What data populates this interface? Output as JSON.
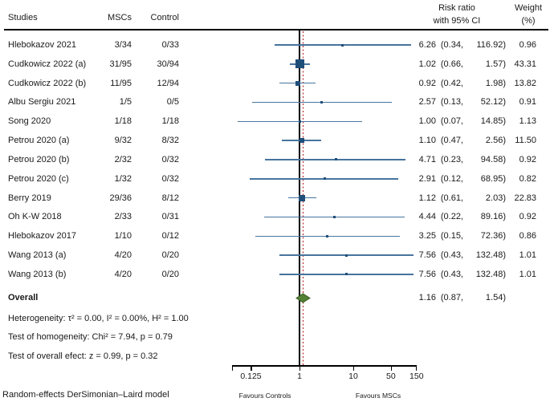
{
  "header": {
    "studies": "Studies",
    "mscs": "MSCs",
    "control": "Control",
    "risk_ratio_line1": "Risk ratio",
    "risk_ratio_line2": "with 95% CI",
    "weight_line1": "Weight",
    "weight_line2": "(%)"
  },
  "chart_data": {
    "type": "forest",
    "x_scale": "log",
    "x_ticks": [
      0.125,
      1,
      10,
      50,
      150
    ],
    "x_tick_labels": [
      "0.125",
      "1",
      "10",
      "50",
      "150"
    ],
    "axis_range": [
      0.068,
      150
    ],
    "null_line_value": 1,
    "overall_line_value": 1.16,
    "favours_left": "Favours Controls",
    "favours_right": "Favours MSCs",
    "studies": [
      {
        "name": "Hlebokazov 2021",
        "mscs": "3/34",
        "control": "0/33",
        "rr": 6.26,
        "ci_lo": 0.34,
        "ci_hi": 116.92,
        "rr_text": "6.26",
        "ci_lo_text": "0.34",
        "ci_hi_text": "116.92",
        "weight": 0.96,
        "weight_text": "0.96"
      },
      {
        "name": "Cudkowicz 2022 (a)",
        "mscs": "31/95",
        "control": "30/94",
        "rr": 1.02,
        "ci_lo": 0.66,
        "ci_hi": 1.57,
        "rr_text": "1.02",
        "ci_lo_text": "0.66",
        "ci_hi_text": "1.57",
        "weight": 43.31,
        "weight_text": "43.31"
      },
      {
        "name": "Cudkowicz 2022 (b)",
        "mscs": "11/95",
        "control": "12/94",
        "rr": 0.92,
        "ci_lo": 0.42,
        "ci_hi": 1.98,
        "rr_text": "0.92",
        "ci_lo_text": "0.42",
        "ci_hi_text": "1.98",
        "weight": 13.82,
        "weight_text": "13.82"
      },
      {
        "name": "Albu Sergiu 2021",
        "mscs": "1/5",
        "control": "0/5",
        "rr": 2.57,
        "ci_lo": 0.13,
        "ci_hi": 52.12,
        "rr_text": "2.57",
        "ci_lo_text": "0.13",
        "ci_hi_text": "52.12",
        "weight": 0.91,
        "weight_text": "0.91"
      },
      {
        "name": "Song 2020",
        "mscs": "1/18",
        "control": "1/18",
        "rr": 1.0,
        "ci_lo": 0.07,
        "ci_hi": 14.85,
        "rr_text": "1.00",
        "ci_lo_text": "0.07",
        "ci_hi_text": "14.85",
        "weight": 1.13,
        "weight_text": "1.13"
      },
      {
        "name": "Petrou 2020 (a)",
        "mscs": "9/32",
        "control": "8/32",
        "rr": 1.1,
        "ci_lo": 0.47,
        "ci_hi": 2.56,
        "rr_text": "1.10",
        "ci_lo_text": "0.47",
        "ci_hi_text": "2.56",
        "weight": 11.5,
        "weight_text": "11.50"
      },
      {
        "name": "Petrou 2020 (b)",
        "mscs": "2/32",
        "control": "0/32",
        "rr": 4.71,
        "ci_lo": 0.23,
        "ci_hi": 94.58,
        "rr_text": "4.71",
        "ci_lo_text": "0.23",
        "ci_hi_text": "94.58",
        "weight": 0.92,
        "weight_text": "0.92"
      },
      {
        "name": "Petrou 2020 (c)",
        "mscs": "1/32",
        "control": "0/32",
        "rr": 2.91,
        "ci_lo": 0.12,
        "ci_hi": 68.95,
        "rr_text": "2.91",
        "ci_lo_text": "0.12",
        "ci_hi_text": "68.95",
        "weight": 0.82,
        "weight_text": "0.82"
      },
      {
        "name": "Berry 2019",
        "mscs": "29/36",
        "control": "8/12",
        "rr": 1.12,
        "ci_lo": 0.61,
        "ci_hi": 2.03,
        "rr_text": "1.12",
        "ci_lo_text": "0.61",
        "ci_hi_text": "2.03",
        "weight": 22.83,
        "weight_text": "22.83"
      },
      {
        "name": "Oh K-W 2018",
        "mscs": "2/33",
        "control": "0/31",
        "rr": 4.44,
        "ci_lo": 0.22,
        "ci_hi": 89.16,
        "rr_text": "4.44",
        "ci_lo_text": "0.22",
        "ci_hi_text": "89.16",
        "weight": 0.92,
        "weight_text": "0.92"
      },
      {
        "name": "Hlebokazov 2017",
        "mscs": "1/10",
        "control": "0/12",
        "rr": 3.25,
        "ci_lo": 0.15,
        "ci_hi": 72.36,
        "rr_text": "3.25",
        "ci_lo_text": "0.15",
        "ci_hi_text": "72.36",
        "weight": 0.86,
        "weight_text": "0.86"
      },
      {
        "name": "Wang 2013 (a)",
        "mscs": "4/20",
        "control": "0/20",
        "rr": 7.56,
        "ci_lo": 0.43,
        "ci_hi": 132.48,
        "rr_text": "7.56",
        "ci_lo_text": "0.43",
        "ci_hi_text": "132.48",
        "weight": 1.01,
        "weight_text": "1.01"
      },
      {
        "name": "Wang 2013 (b)",
        "mscs": "4/20",
        "control": "0/20",
        "rr": 7.56,
        "ci_lo": 0.43,
        "ci_hi": 132.48,
        "rr_text": "7.56",
        "ci_lo_text": "0.43",
        "ci_hi_text": "132.48",
        "weight": 1.01,
        "weight_text": "1.01"
      }
    ],
    "overall": {
      "label": "Overall",
      "rr": 1.16,
      "ci_lo": 0.87,
      "ci_hi": 1.54,
      "rr_text": "1.16",
      "ci_lo_text": "0.87",
      "ci_hi_text": "1.54"
    }
  },
  "stats": {
    "heterogeneity": "Heterogeneity: τ² = 0.00, I² = 0.00%, H² = 1.00",
    "homogeneity": "Test of homogeneity: Chi² = 7.94, p = 0.79",
    "overall_effect": "Test of overall efect: z = 0.99, p = 0.32"
  },
  "footer": {
    "model_note": "Random-effects DerSimonian–Laird model"
  },
  "colors": {
    "ci_line": "#47749e",
    "square": "#1f4e79",
    "diamond_fill": "#538135",
    "diamond_border": "#3a5c22",
    "null_line": "#000000",
    "overall_line": "#b21616",
    "text": "#1a1a1a"
  }
}
